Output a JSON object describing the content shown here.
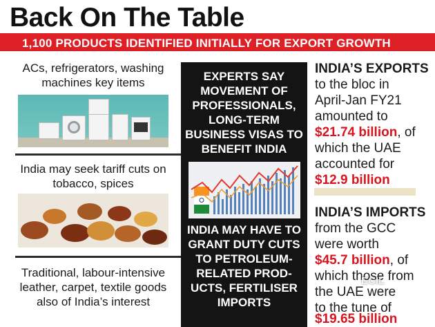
{
  "title": "Back On The Table",
  "banner": "1,100 PRODUCTS IDENTIFIED INITIALLY FOR EXPORT GROWTH",
  "left": {
    "item1": "ACs, refrigerators, washing machines key items",
    "item2": "India may seek tariff cuts on tobacco, spices",
    "item3": "Traditional, labour-intensive leather, carpet, textile goods also of India’s interest"
  },
  "center": {
    "top": "EXPERTS SAY MOVEMENT OF PROFESSIONALS, LONG-TERM BUSINESS VISAS TO BENEFIT INDIA",
    "bottom": "INDIA MAY HAVE TO GRANT DUTY CUTS TO PETROLEUM-RELATED PROD-UCTS, FERTILISER IMPORTS"
  },
  "exports": {
    "heading": "INDIA’S EXPORTS",
    "line1": "to the bloc in",
    "line2": "April-Jan FY21",
    "line3": "amounted to",
    "value1": "$21.74 billion",
    "after1": ", of",
    "line4": "which the UAE",
    "line5": "accounted for",
    "value2": "$12.9 billion"
  },
  "imports": {
    "heading": "INDIA’S IMPORTS",
    "line1": "from the GCC",
    "line2": "were worth",
    "value1": "$45.7 billion",
    "after1": ", of",
    "line3": "which those from",
    "line4": "the UAE were",
    "line5": "to the tune of",
    "value2": "$19.65 billion"
  },
  "watermark": "ECIL",
  "colors": {
    "accent_red": "#dd1f26",
    "panel_black": "#141414",
    "value_red": "#d8151f"
  }
}
